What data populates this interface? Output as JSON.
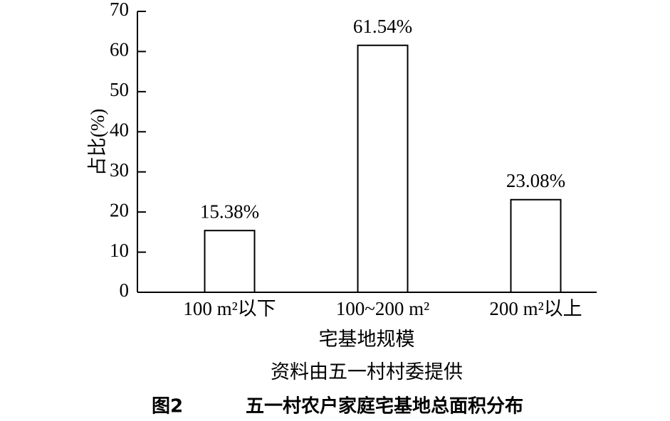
{
  "chart_data": {
    "type": "bar",
    "figure_label": "图2",
    "title": "五一村农户家庭宅基地总面积分布",
    "source": "资料由五一村村委提供",
    "x_label": "宅基地规模",
    "y_label": "占比(%)",
    "categories": [
      "100 m²以下",
      "100~200 m²",
      "200 m²以上"
    ],
    "values": [
      15.38,
      61.54,
      23.08
    ],
    "value_labels": [
      "15.38%",
      "61.54%",
      "23.08%"
    ],
    "color": "#ffffff",
    "ylim": [
      0,
      70
    ],
    "yticks": [
      0,
      10,
      20,
      30,
      40,
      50,
      60,
      70
    ],
    "grid": false
  }
}
